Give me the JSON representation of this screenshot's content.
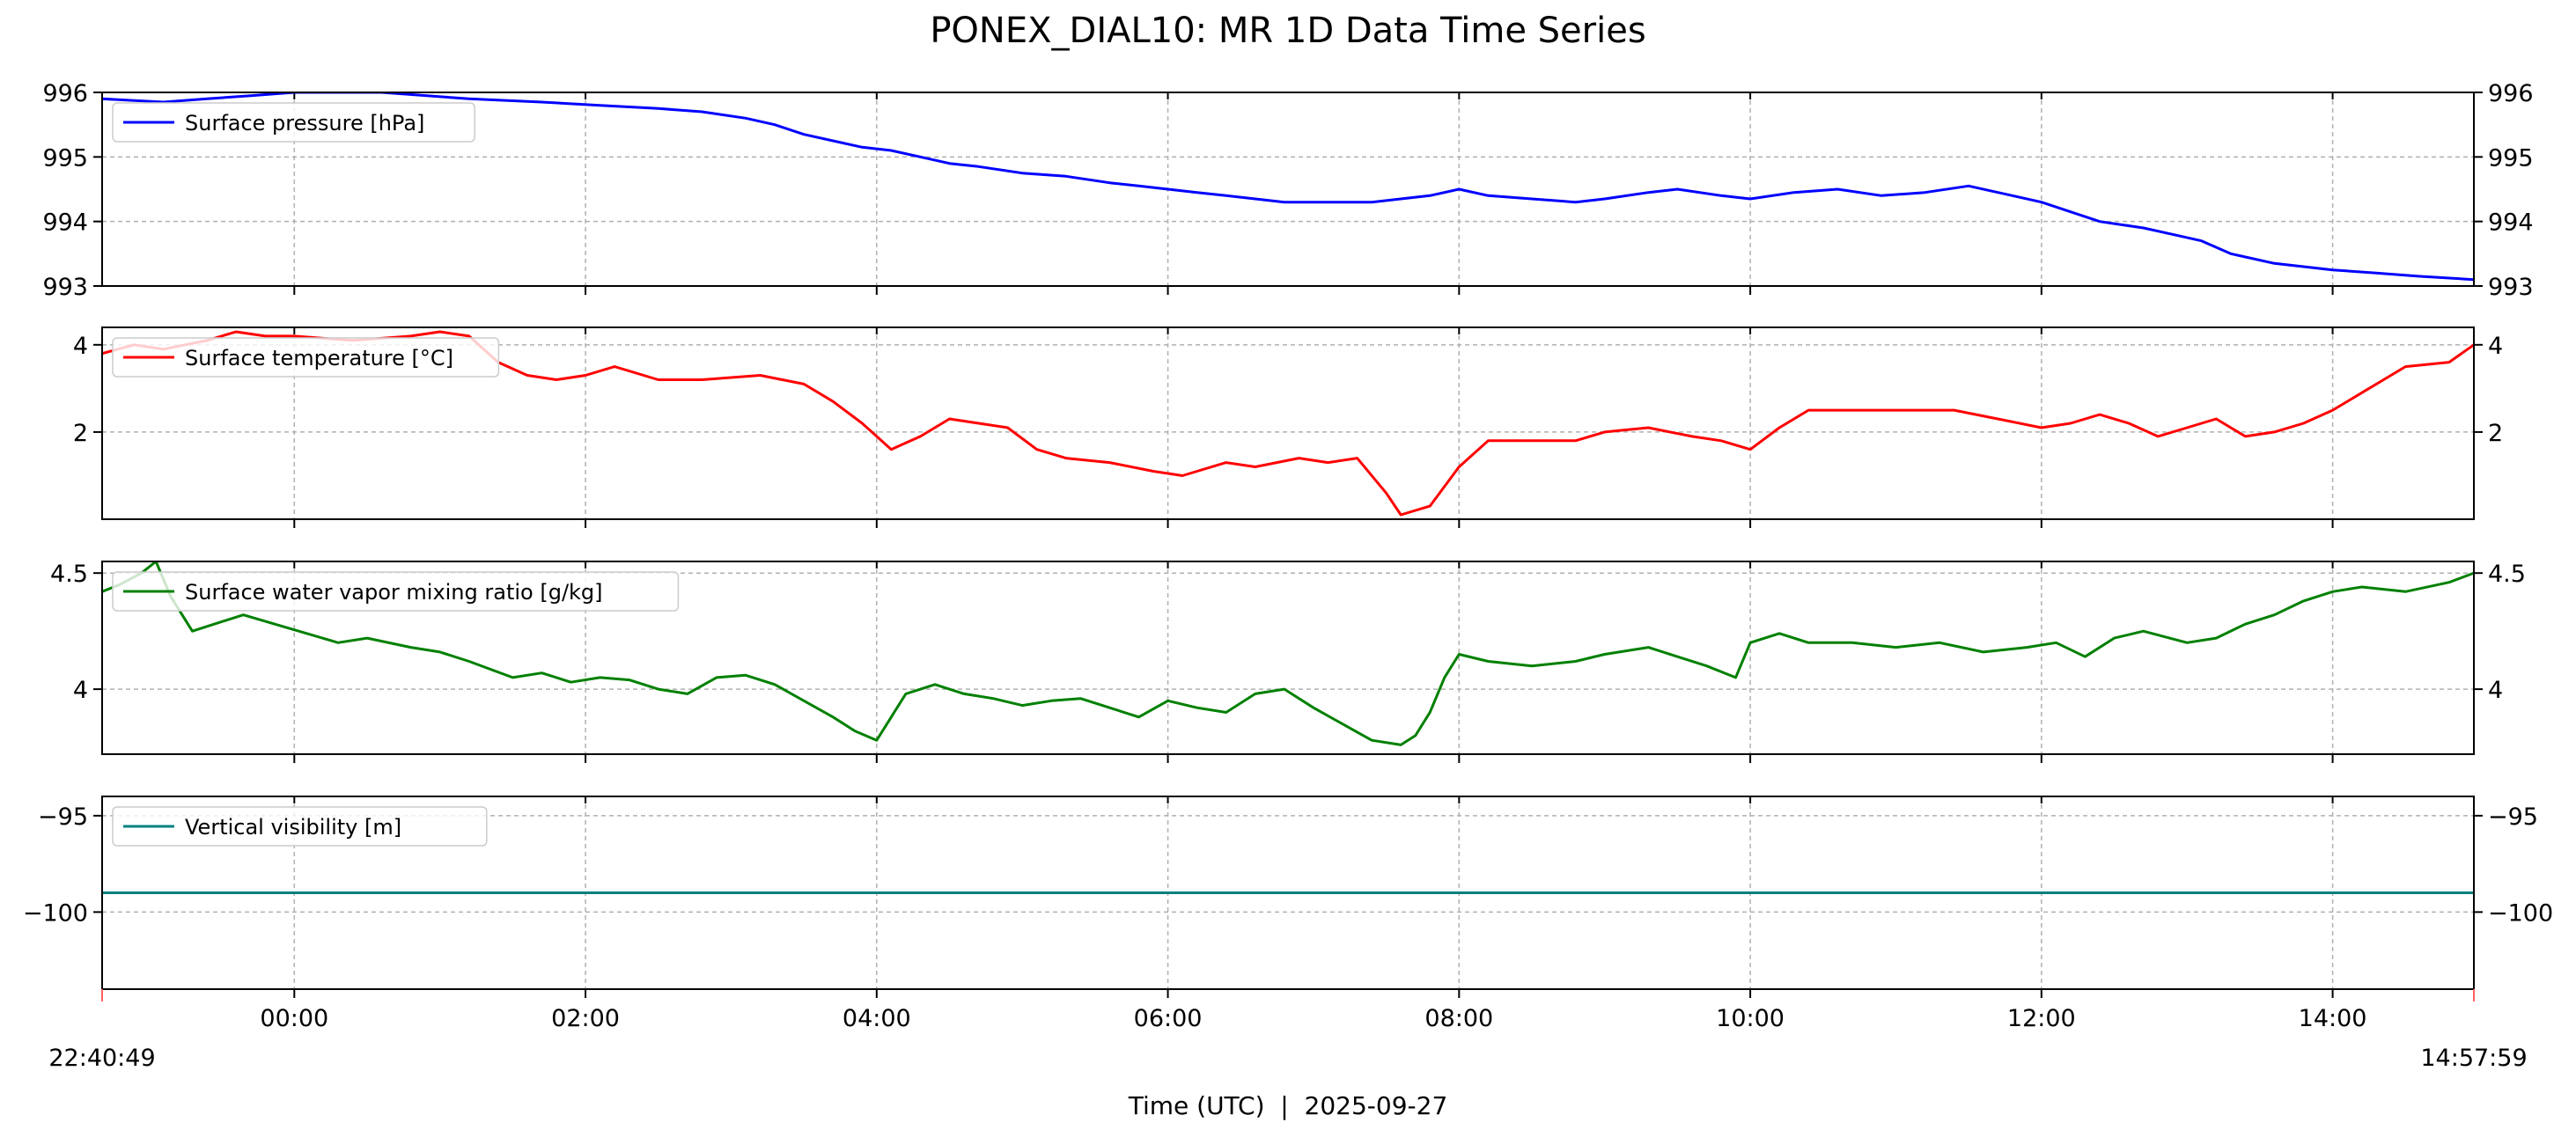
{
  "title": "PONEX_DIAL10: MR 1D Data Time Series",
  "xlabel": "Time (UTC)  |  2025-09-27",
  "x_range_labels": {
    "start": "22:40:49",
    "end": "14:57:59"
  },
  "x_ticks": [
    "00:00",
    "02:00",
    "04:00",
    "06:00",
    "08:00",
    "10:00",
    "12:00",
    "14:00"
  ],
  "chart_data": [
    {
      "type": "line",
      "x_unit": "hours since 2025-09-27 00:00 UTC",
      "xlim": [
        -1.32,
        14.97
      ],
      "ylim": [
        993,
        996
      ],
      "yticks": [
        993,
        994,
        995,
        996
      ],
      "grid": true,
      "legend_position": "top-left",
      "series": [
        {
          "name": "Surface pressure [hPa]",
          "color": "#0000ff",
          "x": [
            -1.32,
            -0.9,
            -0.6,
            -0.3,
            0,
            0.6,
            1.2,
            1.7,
            2.1,
            2.5,
            2.8,
            3.1,
            3.3,
            3.5,
            3.7,
            3.9,
            4.1,
            4.3,
            4.5,
            4.7,
            5.0,
            5.3,
            5.6,
            5.8,
            6.0,
            6.2,
            6.4,
            6.6,
            6.8,
            7.2,
            7.4,
            7.6,
            7.8,
            8.0,
            8.2,
            8.5,
            8.8,
            9.0,
            9.3,
            9.5,
            9.8,
            10.0,
            10.3,
            10.6,
            10.9,
            11.2,
            11.5,
            11.8,
            12.0,
            12.2,
            12.4,
            12.7,
            12.9,
            13.1,
            13.3,
            13.6,
            13.8,
            14.0,
            14.3,
            14.6,
            14.97
          ],
          "values": [
            995.9,
            995.85,
            995.9,
            995.95,
            996.0,
            996.0,
            995.9,
            995.85,
            995.8,
            995.75,
            995.7,
            995.6,
            995.5,
            995.35,
            995.25,
            995.15,
            995.1,
            995.0,
            994.9,
            994.85,
            994.75,
            994.7,
            994.6,
            994.55,
            994.5,
            994.45,
            994.4,
            994.35,
            994.3,
            994.3,
            994.3,
            994.35,
            994.4,
            994.5,
            994.4,
            994.35,
            994.3,
            994.35,
            994.45,
            994.5,
            994.4,
            994.35,
            994.45,
            994.5,
            994.4,
            994.45,
            994.55,
            994.4,
            994.3,
            994.15,
            994.0,
            993.9,
            993.8,
            993.7,
            993.5,
            993.35,
            993.3,
            993.25,
            993.2,
            993.15,
            993.1
          ]
        }
      ]
    },
    {
      "type": "line",
      "x_unit": "hours since 2025-09-27 00:00 UTC",
      "xlim": [
        -1.32,
        14.97
      ],
      "ylim": [
        0.0,
        4.4
      ],
      "yticks": [
        2,
        4
      ],
      "grid": true,
      "legend_position": "top-left",
      "series": [
        {
          "name": "Surface temperature [°C]",
          "color": "#ff0000",
          "x": [
            -1.32,
            -1.1,
            -0.9,
            -0.6,
            -0.4,
            -0.2,
            0,
            0.4,
            0.8,
            1.0,
            1.2,
            1.4,
            1.6,
            1.8,
            2.0,
            2.2,
            2.5,
            2.8,
            3.2,
            3.5,
            3.7,
            3.9,
            4.1,
            4.3,
            4.5,
            4.7,
            4.9,
            5.1,
            5.3,
            5.6,
            5.9,
            6.1,
            6.4,
            6.6,
            6.9,
            7.1,
            7.3,
            7.5,
            7.6,
            7.8,
            8.0,
            8.2,
            8.5,
            8.8,
            9.0,
            9.3,
            9.6,
            9.8,
            10.0,
            10.2,
            10.4,
            10.7,
            11.0,
            11.4,
            11.7,
            12.0,
            12.2,
            12.4,
            12.6,
            12.8,
            13.0,
            13.2,
            13.4,
            13.6,
            13.8,
            14.0,
            14.2,
            14.5,
            14.8,
            14.97
          ],
          "values": [
            3.8,
            4.0,
            3.9,
            4.1,
            4.3,
            4.2,
            4.2,
            4.1,
            4.2,
            4.3,
            4.2,
            3.6,
            3.3,
            3.2,
            3.3,
            3.5,
            3.2,
            3.2,
            3.3,
            3.1,
            2.7,
            2.2,
            1.6,
            1.9,
            2.3,
            2.2,
            2.1,
            1.6,
            1.4,
            1.3,
            1.1,
            1.0,
            1.3,
            1.2,
            1.4,
            1.3,
            1.4,
            0.6,
            0.1,
            0.3,
            1.2,
            1.8,
            1.8,
            1.8,
            2.0,
            2.1,
            1.9,
            1.8,
            1.6,
            2.1,
            2.5,
            2.5,
            2.5,
            2.5,
            2.3,
            2.1,
            2.2,
            2.4,
            2.2,
            1.9,
            2.1,
            2.3,
            1.9,
            2.0,
            2.2,
            2.5,
            2.9,
            3.5,
            3.6,
            4.0
          ]
        }
      ]
    },
    {
      "type": "line",
      "x_unit": "hours since 2025-09-27 00:00 UTC",
      "xlim": [
        -1.32,
        14.97
      ],
      "ylim": [
        3.72,
        4.55
      ],
      "yticks": [
        4.0,
        4.5
      ],
      "grid": true,
      "legend_position": "top-left",
      "series": [
        {
          "name": "Surface water vapor mixing ratio [g/kg]",
          "color": "#008000",
          "x": [
            -1.32,
            -1.2,
            -1.05,
            -0.95,
            -0.85,
            -0.7,
            -0.55,
            -0.35,
            0.3,
            0.5,
            0.8,
            1.0,
            1.2,
            1.5,
            1.7,
            1.9,
            2.1,
            2.3,
            2.5,
            2.7,
            2.9,
            3.1,
            3.3,
            3.5,
            3.7,
            3.85,
            4.0,
            4.2,
            4.4,
            4.6,
            4.8,
            5.0,
            5.2,
            5.4,
            5.6,
            5.8,
            6.0,
            6.2,
            6.4,
            6.6,
            6.8,
            7.0,
            7.2,
            7.4,
            7.6,
            7.7,
            7.8,
            7.9,
            8.0,
            8.2,
            8.5,
            8.8,
            9.0,
            9.3,
            9.5,
            9.7,
            9.9,
            10.0,
            10.2,
            10.4,
            10.7,
            11.0,
            11.3,
            11.6,
            11.9,
            12.1,
            12.3,
            12.5,
            12.7,
            13.0,
            13.2,
            13.4,
            13.6,
            13.8,
            14.0,
            14.2,
            14.5,
            14.8,
            14.97
          ],
          "values": [
            4.42,
            4.45,
            4.5,
            4.55,
            4.4,
            4.25,
            4.28,
            4.32,
            4.2,
            4.22,
            4.18,
            4.16,
            4.12,
            4.05,
            4.07,
            4.03,
            4.05,
            4.04,
            4.0,
            3.98,
            4.05,
            4.06,
            4.02,
            3.95,
            3.88,
            3.82,
            3.78,
            3.98,
            4.02,
            3.98,
            3.96,
            3.93,
            3.95,
            3.96,
            3.92,
            3.88,
            3.95,
            3.92,
            3.9,
            3.98,
            4.0,
            3.92,
            3.85,
            3.78,
            3.76,
            3.8,
            3.9,
            4.05,
            4.15,
            4.12,
            4.1,
            4.12,
            4.15,
            4.18,
            4.14,
            4.1,
            4.05,
            4.2,
            4.24,
            4.2,
            4.2,
            4.18,
            4.2,
            4.16,
            4.18,
            4.2,
            4.14,
            4.22,
            4.25,
            4.2,
            4.22,
            4.28,
            4.32,
            4.38,
            4.42,
            4.44,
            4.42,
            4.46,
            4.5
          ]
        }
      ]
    },
    {
      "type": "line",
      "x_unit": "hours since 2025-09-27 00:00 UTC",
      "xlim": [
        -1.32,
        14.97
      ],
      "ylim": [
        -104,
        -94
      ],
      "yticks": [
        -95,
        -100
      ],
      "grid": true,
      "legend_position": "top-left",
      "series": [
        {
          "name": "Vertical visibility [m]",
          "color": "#008080",
          "x": [
            -1.32,
            14.97
          ],
          "values": [
            -99,
            -99
          ]
        }
      ]
    }
  ]
}
